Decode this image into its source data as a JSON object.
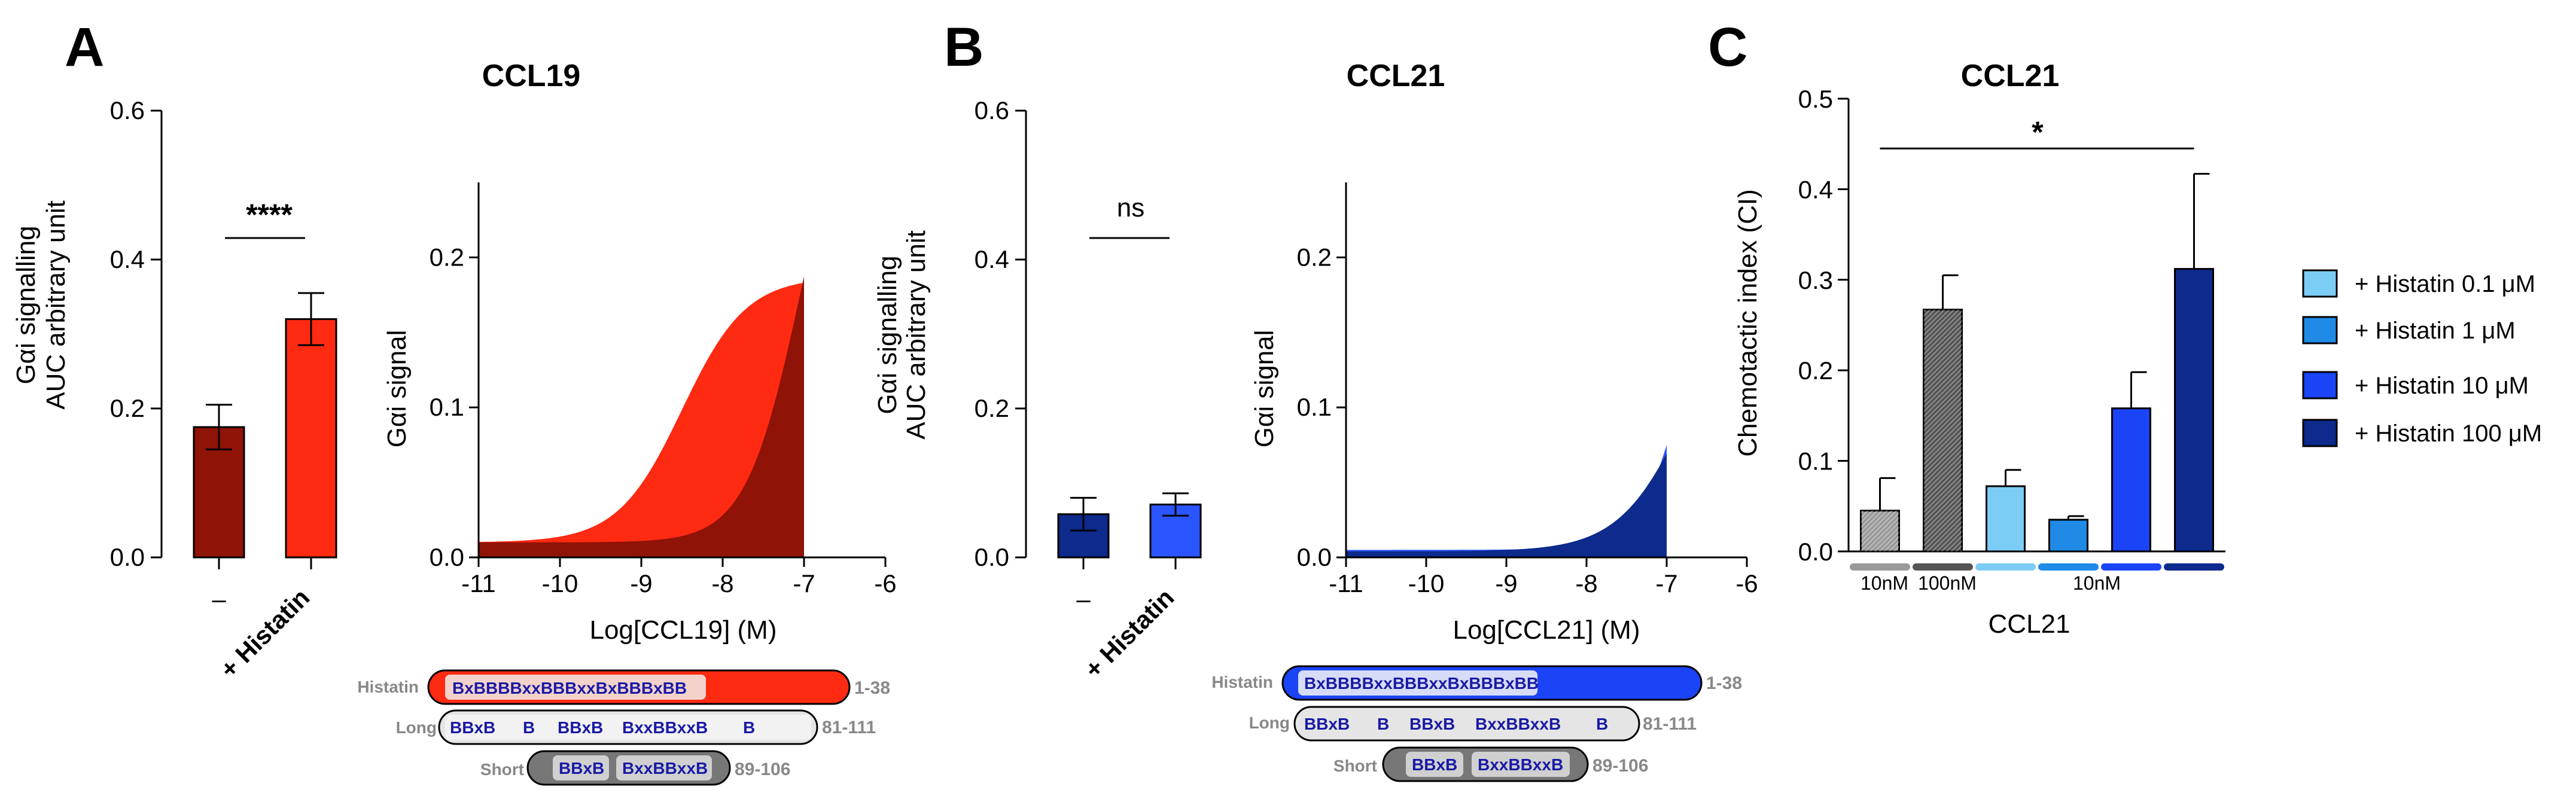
{
  "panels": {
    "A": {
      "letter": "A",
      "bar": {
        "ylabel_line1": "Gαi signalling",
        "ylabel_line2": "AUC arbitrary unit",
        "categories": [
          "–",
          "+ Histatin"
        ],
        "significance": "****"
      },
      "curve": {
        "title": "CCL19",
        "ylabel": "Gαi signal",
        "xlabel": "Log[CCL19] (M)"
      }
    },
    "B": {
      "letter": "B",
      "bar": {
        "ylabel_line1": "Gαi signalling",
        "ylabel_line2": "AUC arbitrary unit",
        "categories": [
          "–",
          "+ Histatin"
        ],
        "significance": "ns"
      },
      "curve": {
        "title": "CCL21",
        "ylabel": "Gαi signal",
        "xlabel": "Log[CCL21] (M)"
      }
    },
    "C": {
      "letter": "C",
      "title": "CCL21",
      "ylabel": "Chemotactic index (CI)",
      "xlabel": "CCL21",
      "group_labels": [
        "10nM",
        "100nM",
        "10nM"
      ],
      "significance": "*",
      "legend": [
        {
          "label": "+ Histatin 0.1 μM",
          "color": "#7ccdf5"
        },
        {
          "label": "+ Histatin 1 μM",
          "color": "#1f8be6"
        },
        {
          "label": "+ Histatin 10 μM",
          "color": "#1a44f5"
        },
        {
          "label": "+ Histatin 100 μM",
          "color": "#0d2a8c"
        }
      ]
    }
  },
  "sequences": {
    "A": [
      {
        "label": "Histatin",
        "text": "BxBBBBxxBBBxxBxBBBxBB",
        "range": "1-38"
      },
      {
        "label": "Long",
        "segments": [
          "BBxB",
          "B",
          "BBxB",
          "BxxBBxxB",
          "B"
        ],
        "range": "81-111"
      },
      {
        "label": "Short",
        "segments": [
          "BBxB",
          "BxxBBxxB"
        ],
        "range": "89-106"
      }
    ],
    "B": [
      {
        "label": "Histatin",
        "text": "BxBBBBxxBBBxxBxBBBxBB",
        "range": "1-38"
      },
      {
        "label": "Long",
        "segments": [
          "BBxB",
          "B",
          "BBxB",
          "BxxBBxxB",
          "B"
        ],
        "range": "81-111"
      },
      {
        "label": "Short",
        "segments": [
          "BBxB",
          "BxxBBxxB"
        ],
        "range": "89-106"
      }
    ]
  },
  "chart_data": [
    {
      "type": "bar",
      "panel": "A-left",
      "categories": [
        "–",
        "+ Histatin"
      ],
      "values": [
        0.175,
        0.32
      ],
      "errors": [
        0.03,
        0.035
      ],
      "colors": [
        "#8f1306",
        "#ff2a12"
      ],
      "ylabel": "Gαi signalling AUC arbitrary unit",
      "ylim": [
        0,
        0.6
      ],
      "yticks": [
        "0.0",
        "0.2",
        "0.4",
        "0.6"
      ]
    },
    {
      "type": "area",
      "panel": "A-right",
      "title": "CCL19",
      "xlabel": "Log[CCL19] (M)",
      "ylabel": "Gαi signal",
      "xlim": [
        -11,
        -6
      ],
      "ylim": [
        0,
        0.25
      ],
      "xticks": [
        "-11",
        "-10",
        "-9",
        "-8",
        "-7",
        "-6"
      ],
      "yticks": [
        "0.0",
        "0.1",
        "0.2"
      ],
      "series": [
        {
          "name": "+ Histatin",
          "color": "#ff2a12",
          "bottom": 0.01,
          "top": 0.187,
          "logEC50": -8.5,
          "hill": 1.1,
          "x_end": -7
        },
        {
          "name": "–",
          "color": "#8f1306",
          "bottom": 0.01,
          "top": 0.34,
          "logEC50": -7.05,
          "hill": 1.3,
          "x_end": -7
        }
      ]
    },
    {
      "type": "bar",
      "panel": "B-left",
      "categories": [
        "–",
        "+ Histatin"
      ],
      "values": [
        0.058,
        0.071
      ],
      "errors": [
        0.022,
        0.015
      ],
      "colors": [
        "#0d2a8c",
        "#2a55ff"
      ],
      "ylabel": "Gαi signalling AUC arbitrary unit",
      "ylim": [
        0,
        0.6
      ],
      "yticks": [
        "0.0",
        "0.2",
        "0.4",
        "0.6"
      ]
    },
    {
      "type": "area",
      "panel": "B-right",
      "title": "CCL21",
      "xlabel": "Log[CCL21] (M)",
      "ylabel": "Gαi signal",
      "xlim": [
        -11,
        -6
      ],
      "ylim": [
        0,
        0.25
      ],
      "xticks": [
        "-11",
        "-10",
        "-9",
        "-8",
        "-7",
        "-6"
      ],
      "yticks": [
        "0.0",
        "0.1",
        "0.2"
      ],
      "series": [
        {
          "name": "+ Histatin",
          "color": "#2a55ff",
          "bottom": 0.005,
          "top": 0.6,
          "logEC50": -6.3,
          "hill": 1.25,
          "x_end": -7
        },
        {
          "name": "–",
          "color": "#0d2a8c",
          "bottom": 0.004,
          "top": 0.2,
          "logEC50": -6.7,
          "hill": 1.0,
          "x_end": -7
        }
      ]
    },
    {
      "type": "bar",
      "panel": "C",
      "title": "CCL21",
      "ylabel": "Chemotactic index (CI)",
      "xlabel": "CCL21",
      "ylim": [
        0,
        0.5
      ],
      "yticks": [
        "0.0",
        "0.1",
        "0.2",
        "0.3",
        "0.4",
        "0.5"
      ],
      "bars": [
        {
          "value": 0.045,
          "error": 0.036,
          "color": "#9a9a9a",
          "pattern": true,
          "underline": "#999999"
        },
        {
          "value": 0.267,
          "error": 0.038,
          "color": "#555555",
          "pattern": true,
          "underline": "#555555"
        },
        {
          "value": 0.072,
          "error": 0.018,
          "color": "#7ccdf5",
          "underline": "#7ccdf5"
        },
        {
          "value": 0.035,
          "error": 0.004,
          "color": "#1f8be6",
          "underline": "#1f8be6"
        },
        {
          "value": 0.158,
          "error": 0.04,
          "color": "#1a44f5",
          "underline": "#1a44f5"
        },
        {
          "value": 0.312,
          "error": 0.105,
          "color": "#0d2a8c",
          "underline": "#0d2a8c"
        }
      ],
      "significance": {
        "label": "*",
        "from_bar": 0,
        "to_bar": 5,
        "y": 0.445
      }
    }
  ]
}
